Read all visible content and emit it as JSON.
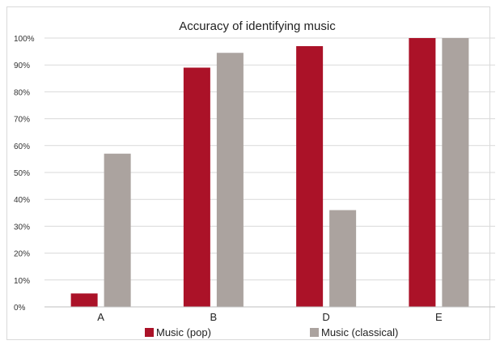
{
  "chart_data": {
    "type": "bar",
    "title": "Accuracy of identifying music",
    "categories": [
      "A",
      "B",
      "D",
      "E"
    ],
    "series": [
      {
        "name": "Music (pop)",
        "color": "#ab1228",
        "values": [
          5,
          89,
          97,
          100
        ]
      },
      {
        "name": "Music (classical)",
        "color": "#aba39f",
        "values": [
          57,
          94.5,
          36,
          100
        ]
      }
    ],
    "ylim": [
      0,
      100
    ],
    "yticks": [
      0,
      10,
      20,
      30,
      40,
      50,
      60,
      70,
      80,
      90,
      100
    ],
    "ytick_labels": [
      "0%",
      "10%",
      "20%",
      "30%",
      "40%",
      "50%",
      "60%",
      "70%",
      "80%",
      "90%",
      "100%"
    ],
    "xlabel": "",
    "ylabel": "",
    "grid": true,
    "legend_position": "bottom"
  }
}
